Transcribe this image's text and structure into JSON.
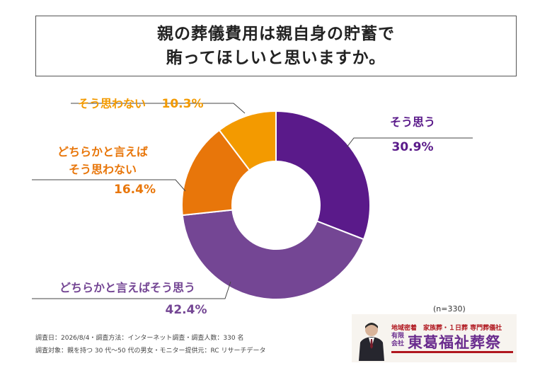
{
  "title": {
    "line1": "親の葬儀費用は親自身の貯蓄で",
    "line2": "賄ってほしいと思いますか。"
  },
  "chart_data": {
    "type": "pie",
    "donut": true,
    "categories": [
      "そう思う",
      "どちらかと言えばそう思う",
      "どちらかと言えばそう思わない",
      "そう思わない"
    ],
    "values": [
      30.9,
      42.4,
      16.4,
      10.3
    ],
    "value_labels": [
      "30.9%",
      "42.4%",
      "16.4%",
      "10.3%"
    ],
    "colors": [
      "#5a1a8a",
      "#744694",
      "#e8760a",
      "#f39a00"
    ],
    "label_colors": [
      "#5a1a8a",
      "#744694",
      "#e8760a",
      "#f39a00"
    ],
    "label_lines": [
      [
        "そう思う"
      ],
      [
        "どちらかと言えばそう思う"
      ],
      [
        "どちらかと言えば",
        "そう思わない"
      ],
      [
        "そう思わない"
      ]
    ]
  },
  "sample_size": "(n=330)",
  "survey": {
    "line1": "調査日：2026/8/4・調査方法：インターネット調査・調査人数：330 名",
    "line2": "調査対象：親を持つ 30 代〜50 代の男女・モニター提供元：RC リサーチデータ"
  },
  "company": {
    "tagline": "地域密着　家族葬・１日葬 専門葬儀社",
    "type": "有限会社",
    "name": "東葛福祉葬祭"
  }
}
